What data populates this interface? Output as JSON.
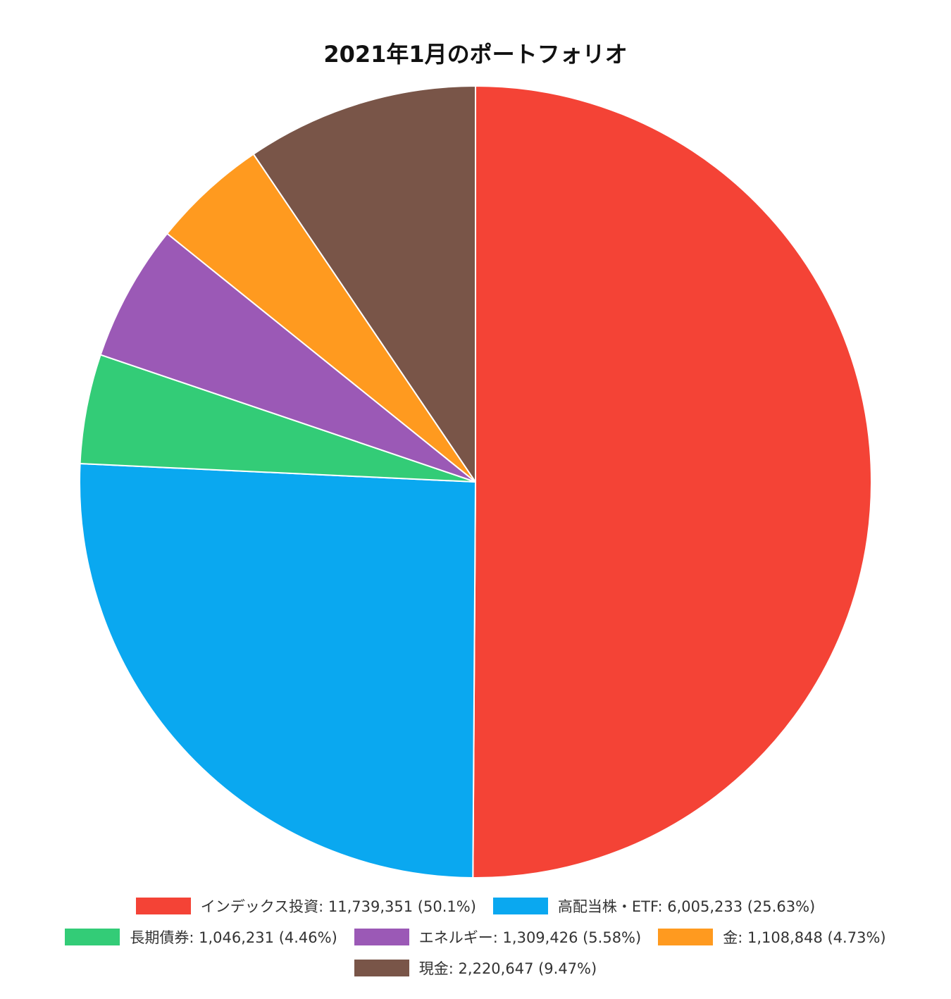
{
  "chart_data": {
    "type": "pie",
    "title": "2021年1月のポートフォリオ",
    "slices": [
      {
        "label": "インデックス投資",
        "value": 11739351,
        "percent": "50.1%",
        "color": "#f44336"
      },
      {
        "label": "高配当株・ETF",
        "value": 6005233,
        "percent": "25.63%",
        "color": "#0aa8f0"
      },
      {
        "label": "長期債券",
        "value": 1046231,
        "percent": "4.46%",
        "color": "#33cc77"
      },
      {
        "label": "エネルギー",
        "value": 1309426,
        "percent": "5.58%",
        "color": "#9b59b6"
      },
      {
        "label": "金",
        "value": 1108848,
        "percent": "4.73%",
        "color": "#ff9a1f"
      },
      {
        "label": "現金",
        "value": 2220647,
        "percent": "9.47%",
        "color": "#795548"
      }
    ],
    "legend_placement": "bottom",
    "legend_texts": [
      "インデックス投資: 11,739,351 (50.1%)",
      "高配当株・ETF: 6,005,233 (25.63%)",
      "長期債券: 1,046,231 (4.46%)",
      "エネルギー: 1,309,426 (5.58%)",
      "金: 1,108,848 (4.73%)",
      "現金: 2,220,647 (9.47%)"
    ]
  }
}
